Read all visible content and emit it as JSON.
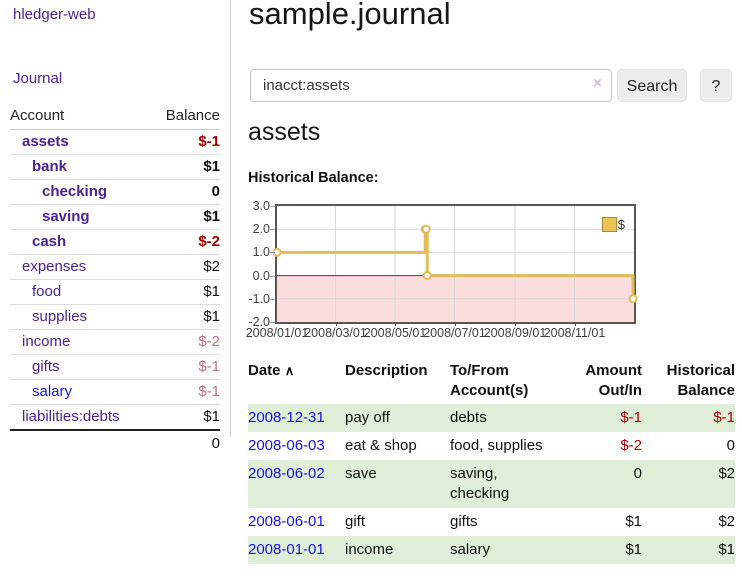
{
  "app": {
    "brand": "hledger-web",
    "nav_journal": "Journal"
  },
  "colors": {
    "link_purple": "#4b2391",
    "link_blue": "#1414e0",
    "negative_red": "#a40000",
    "negative_muted": "#c0727e",
    "row_stripe_green": "#dfeed8",
    "chart_line_gold": "#e3bc57",
    "chart_negative_region": "#fbdddd",
    "chart_zero_line": "#9e1a1a"
  },
  "sidebar": {
    "header": {
      "account": "Account",
      "balance": "Balance"
    },
    "accounts": [
      {
        "name": "assets",
        "indent": 1,
        "bold": true,
        "link": "purple",
        "balance": "$-1",
        "balance_style": "neg-strong"
      },
      {
        "name": "bank",
        "indent": 2,
        "bold": true,
        "link": "purple",
        "balance": "$1",
        "balance_style": "pos"
      },
      {
        "name": "checking",
        "indent": 3,
        "bold": true,
        "link": "purple",
        "balance": "0",
        "balance_style": "pos"
      },
      {
        "name": "saving",
        "indent": 3,
        "bold": true,
        "link": "purple",
        "balance": "$1",
        "balance_style": "pos"
      },
      {
        "name": "cash",
        "indent": 2,
        "bold": true,
        "link": "purple",
        "balance": "$-2",
        "balance_style": "neg-strong"
      },
      {
        "name": "expenses",
        "indent": 1,
        "bold": false,
        "link": "purple",
        "balance": "$2",
        "balance_style": "pos"
      },
      {
        "name": "food",
        "indent": 2,
        "bold": false,
        "link": "purple",
        "balance": "$1",
        "balance_style": "pos"
      },
      {
        "name": "supplies",
        "indent": 2,
        "bold": false,
        "link": "purple",
        "balance": "$1",
        "balance_style": "pos"
      },
      {
        "name": "income",
        "indent": 1,
        "bold": false,
        "link": "purple",
        "balance": "$-2",
        "balance_style": "neg-muted"
      },
      {
        "name": "gifts",
        "indent": 2,
        "bold": false,
        "link": "purple",
        "balance": "$-1",
        "balance_style": "neg-muted"
      },
      {
        "name": "salary",
        "indent": 2,
        "bold": false,
        "link": "blue",
        "balance": "$-1",
        "balance_style": "neg-muted"
      },
      {
        "name": "liabilities:debts",
        "indent": 1,
        "bold": false,
        "link": "purple",
        "balance": "$1",
        "balance_style": "pos"
      }
    ],
    "total": "0"
  },
  "header": {
    "title": "sample.journal"
  },
  "search": {
    "value": "inacct:assets",
    "clear_icon": "×",
    "button_label": "Search",
    "help_label": "?"
  },
  "register": {
    "account_title": "assets",
    "chart_label": "Historical Balance:",
    "table": {
      "headers": {
        "date": "Date",
        "sort_icon": "∧",
        "description": "Description",
        "tofrom": "To/From Account(s)",
        "amount": "Amount Out/In",
        "balance": "Historical Balance"
      },
      "rows": [
        {
          "date": "2008-12-31",
          "description": "pay off",
          "accounts": "debts",
          "amount": "$-1",
          "amount_style": "neg",
          "balance": "$-1",
          "balance_style": "neg"
        },
        {
          "date": "2008-06-03",
          "description": "eat & shop",
          "accounts": "food, supplies",
          "amount": "$-2",
          "amount_style": "neg",
          "balance": "0",
          "balance_style": "pos"
        },
        {
          "date": "2008-06-02",
          "description": "save",
          "accounts": "saving, checking",
          "amount": "0",
          "amount_style": "pos",
          "balance": "$2",
          "balance_style": "pos"
        },
        {
          "date": "2008-06-01",
          "description": "gift",
          "accounts": "gifts",
          "amount": "$1",
          "amount_style": "pos",
          "balance": "$2",
          "balance_style": "pos"
        },
        {
          "date": "2008-01-01",
          "description": "income",
          "accounts": "salary",
          "amount": "$1",
          "amount_style": "pos",
          "balance": "$1",
          "balance_style": "pos"
        }
      ]
    }
  },
  "chart_data": {
    "type": "line",
    "step": true,
    "title": "Historical Balance",
    "legend": "$",
    "series": [
      {
        "name": "$",
        "points": [
          [
            "2008-01-01",
            1
          ],
          [
            "2008-06-01",
            2
          ],
          [
            "2008-06-02",
            2
          ],
          [
            "2008-06-03",
            0
          ],
          [
            "2008-12-31",
            -1
          ]
        ]
      }
    ],
    "x_ticks": [
      "2008/01/01",
      "2008/03/01",
      "2008/05/01",
      "2008/07/01",
      "2008/09/01",
      "2008/11/01"
    ],
    "y_ticks": [
      "3.0",
      "2.0",
      "1.0",
      "0.0",
      "-1.0",
      "-2.0"
    ],
    "ylim": [
      -2,
      3
    ],
    "x_start": "2008-01-01",
    "x_span_days": 366,
    "grid": true,
    "legend_position": "top-right",
    "colors": {
      "line": "#e3bc57",
      "marker_fill": "#ffffff",
      "negative_region": "#fbdddd",
      "zero_line": "#9e1a1a",
      "grid": "#d9d9d9",
      "border": "#575757"
    }
  }
}
